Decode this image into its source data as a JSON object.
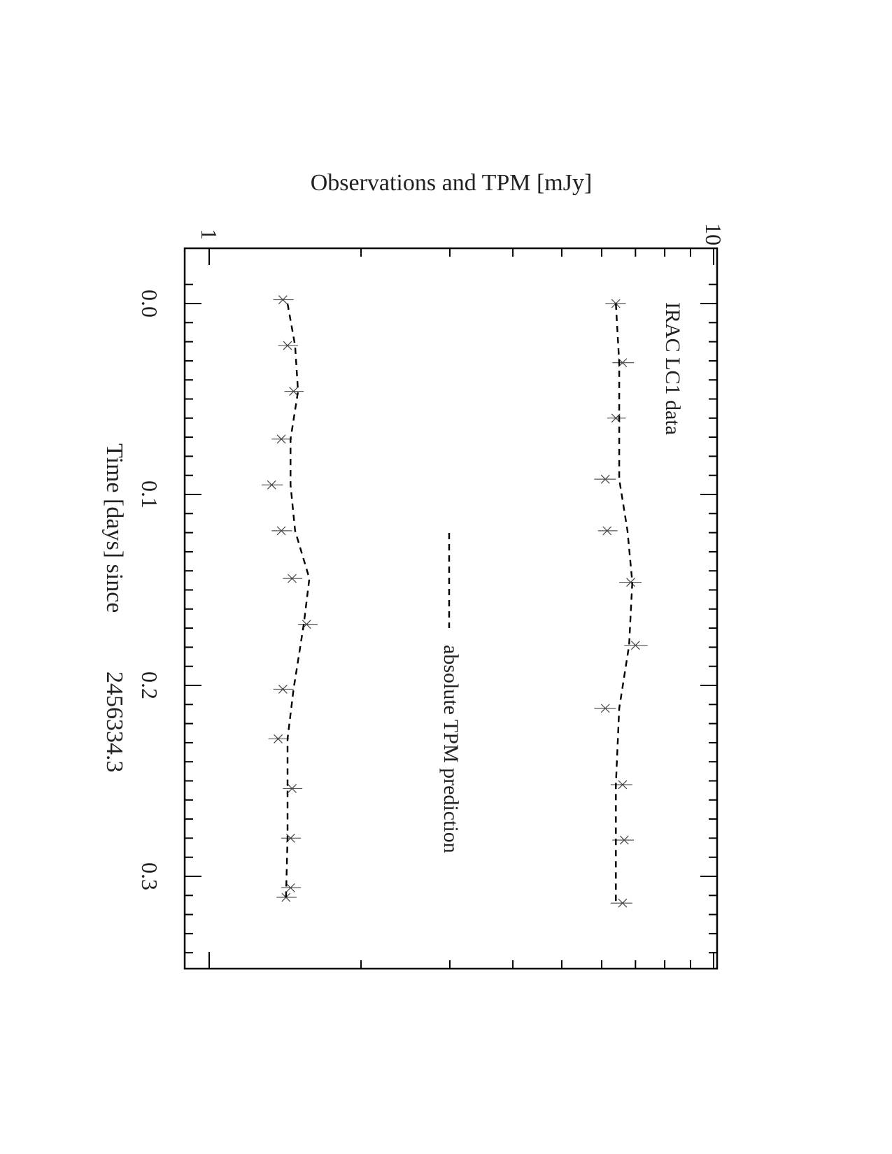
{
  "chart_data": {
    "type": "line",
    "orientation": "rotated 90 degrees clockwise",
    "ylabel": "Observations and TPM [mJy]",
    "xlabel": "Time [days] since",
    "xlabel_epoch": "2456334.3",
    "yscale": "log",
    "ylim": [
      1,
      10
    ],
    "xlim": [
      -0.0295,
      0.35
    ],
    "x_tick_labels": [
      {
        "value": 0.0,
        "label": "0.0"
      },
      {
        "value": 0.1,
        "label": "0.1"
      },
      {
        "value": 0.2,
        "label": "0.2"
      },
      {
        "value": 0.3,
        "label": "0.3"
      }
    ],
    "y_tick_labels": [
      {
        "value": 1,
        "label": "1"
      },
      {
        "value": 10,
        "label": "10"
      }
    ],
    "annotations": {
      "series_label": "IRAC LC1 data",
      "model_legend": "absolute TPM prediction"
    },
    "series": [
      {
        "role": "observations",
        "x": [
          0.0,
          0.031,
          0.06,
          0.092,
          0.119,
          0.146,
          0.179,
          0.212,
          0.252,
          0.281,
          0.314
        ],
        "y": [
          6.4,
          6.6,
          6.4,
          6.1,
          6.15,
          6.85,
          7.0,
          6.1,
          6.6,
          6.65,
          6.6
        ],
        "yerr_low": [
          0.3,
          0.3,
          0.25,
          0.3,
          0.25,
          0.35,
          0.35,
          0.3,
          0.35,
          0.35,
          0.35
        ],
        "yerr_high": [
          0.3,
          0.35,
          0.3,
          0.3,
          0.3,
          0.35,
          0.4,
          0.3,
          0.3,
          0.3,
          0.3
        ]
      },
      {
        "role": "model",
        "x": [
          0.0,
          0.031,
          0.06,
          0.092,
          0.119,
          0.146,
          0.179,
          0.212,
          0.252,
          0.281,
          0.314
        ],
        "y": [
          6.4,
          6.5,
          6.5,
          6.5,
          6.75,
          6.9,
          6.8,
          6.5,
          6.4,
          6.4,
          6.4
        ]
      },
      {
        "role": "observations",
        "x": [
          -0.002,
          0.022,
          0.046,
          0.071,
          0.095,
          0.119,
          0.144,
          0.168,
          0.202,
          0.228,
          0.254,
          0.28,
          0.306,
          0.311
        ],
        "y": [
          1.4,
          1.43,
          1.47,
          1.39,
          1.33,
          1.39,
          1.46,
          1.56,
          1.4,
          1.37,
          1.46,
          1.45,
          1.45,
          1.42
        ],
        "yerr_low": [
          0.06,
          0.06,
          0.06,
          0.06,
          0.06,
          0.06,
          0.06,
          0.06,
          0.06,
          0.06,
          0.06,
          0.06,
          0.06,
          0.06
        ],
        "yerr_high": [
          0.07,
          0.07,
          0.07,
          0.07,
          0.07,
          0.07,
          0.07,
          0.08,
          0.07,
          0.07,
          0.07,
          0.07,
          0.07,
          0.07
        ]
      },
      {
        "role": "model",
        "x": [
          0.0,
          0.022,
          0.046,
          0.071,
          0.095,
          0.119,
          0.144,
          0.168,
          0.202,
          0.228,
          0.254,
          0.28,
          0.311
        ],
        "y": [
          1.43,
          1.48,
          1.5,
          1.45,
          1.45,
          1.48,
          1.58,
          1.54,
          1.47,
          1.43,
          1.43,
          1.43,
          1.42
        ]
      }
    ]
  }
}
